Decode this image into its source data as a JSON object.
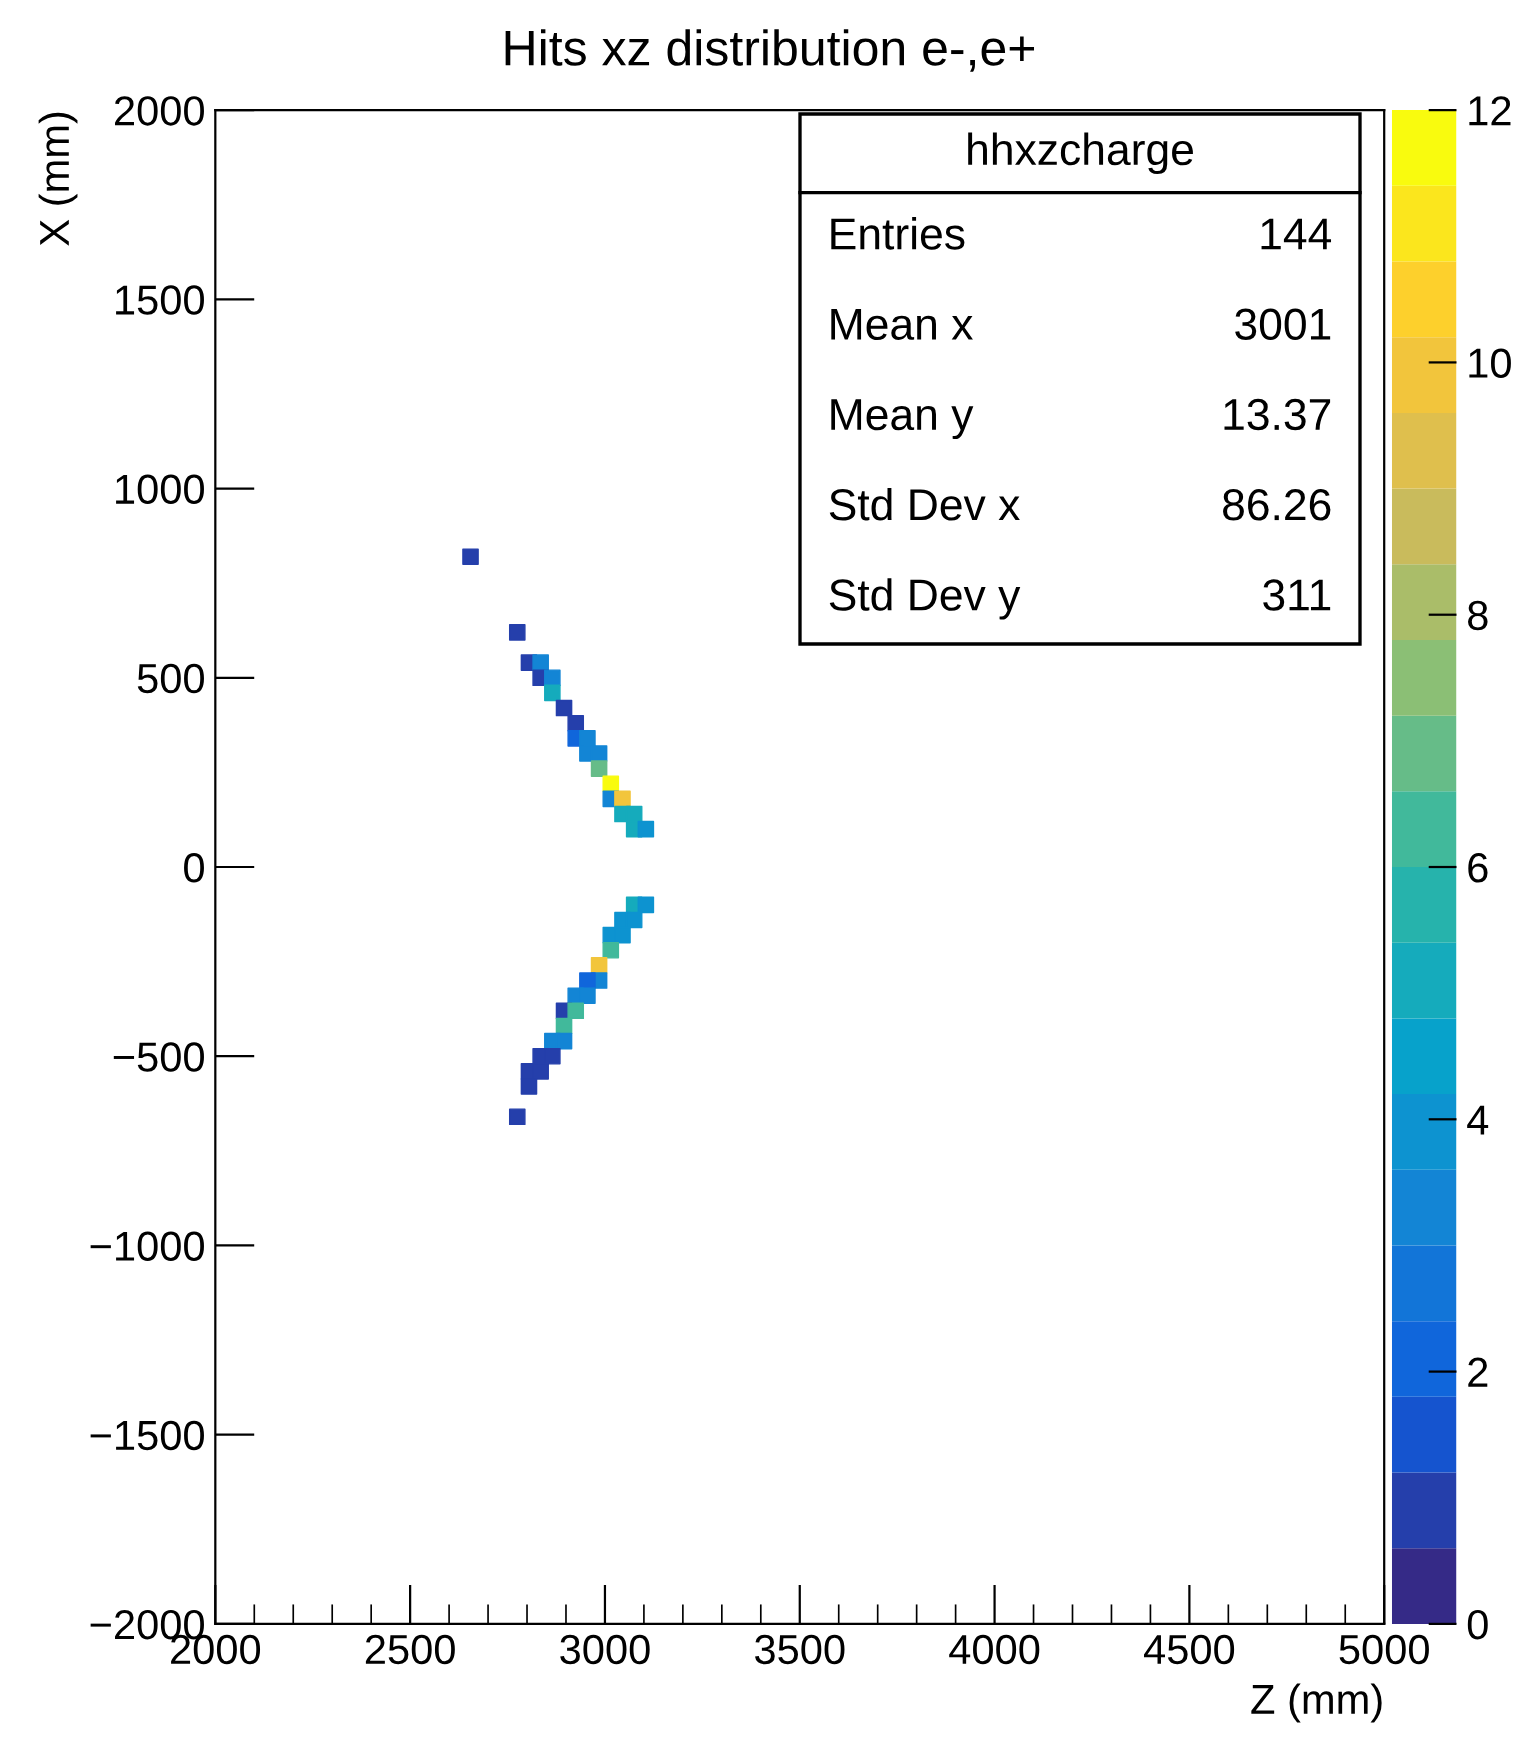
{
  "chart_data": {
    "type": "scatter",
    "title": "Hits xz distribution e-,e+",
    "xlabel": "Z (mm)",
    "ylabel": "X (mm)",
    "xlim": [
      2000,
      5000
    ],
    "xticks": [
      2000,
      2500,
      3000,
      3500,
      4000,
      4500,
      5000
    ],
    "ylim": [
      -2000,
      2000
    ],
    "yticks": [
      {
        "value": -2000,
        "label": "−2000"
      },
      {
        "value": -1500,
        "label": "−1500"
      },
      {
        "value": -1000,
        "label": "−1000"
      },
      {
        "value": -500,
        "label": "−500"
      },
      0,
      500,
      1000,
      1500,
      2000
    ],
    "clim": [
      0,
      12
    ],
    "cticks": [
      0,
      2,
      4,
      6,
      8,
      10,
      12
    ],
    "marker": "square",
    "grid": false,
    "legend": false,
    "annotations": [
      "hhxzcharge",
      "Entries",
      "144",
      "Mean x",
      "3001",
      "Mean y",
      "13.37",
      "Std Dev x",
      "86.26",
      "Std Dev y",
      "311"
    ],
    "x": [
      2655,
      2775,
      2805,
      2835,
      2835,
      2865,
      2865,
      2895,
      2925,
      2925,
      2955,
      2955,
      2985,
      2985,
      3015,
      3015,
      3045,
      3045,
      3075,
      3075,
      3105,
      3075,
      3105,
      3045,
      3075,
      3015,
      3045,
      3015,
      2985,
      2985,
      2955,
      2925,
      2955,
      2895,
      2925,
      2895,
      2865,
      2895,
      2835,
      2865,
      2805,
      2835,
      2805,
      2775
    ],
    "values": [
      820,
      620,
      540,
      540,
      500,
      500,
      460,
      420,
      380,
      340,
      340,
      300,
      300,
      260,
      220,
      180,
      180,
      140,
      140,
      100,
      100,
      -100,
      -100,
      -140,
      -140,
      -180,
      -180,
      -220,
      -260,
      -300,
      -300,
      -340,
      -340,
      -380,
      -380,
      -420,
      -460,
      -460,
      -500,
      -500,
      -540,
      -540,
      -580,
      -660
    ],
    "cvalues": [
      1,
      1,
      1,
      3,
      1,
      3,
      5,
      1,
      1,
      2,
      3,
      3,
      3,
      7,
      12,
      3,
      10,
      5,
      5,
      5,
      4,
      5,
      4,
      4,
      4,
      4,
      4,
      6,
      10,
      3,
      2,
      3,
      3,
      1,
      6,
      6,
      3,
      3,
      1,
      1,
      1,
      1,
      1,
      1
    ]
  }
}
